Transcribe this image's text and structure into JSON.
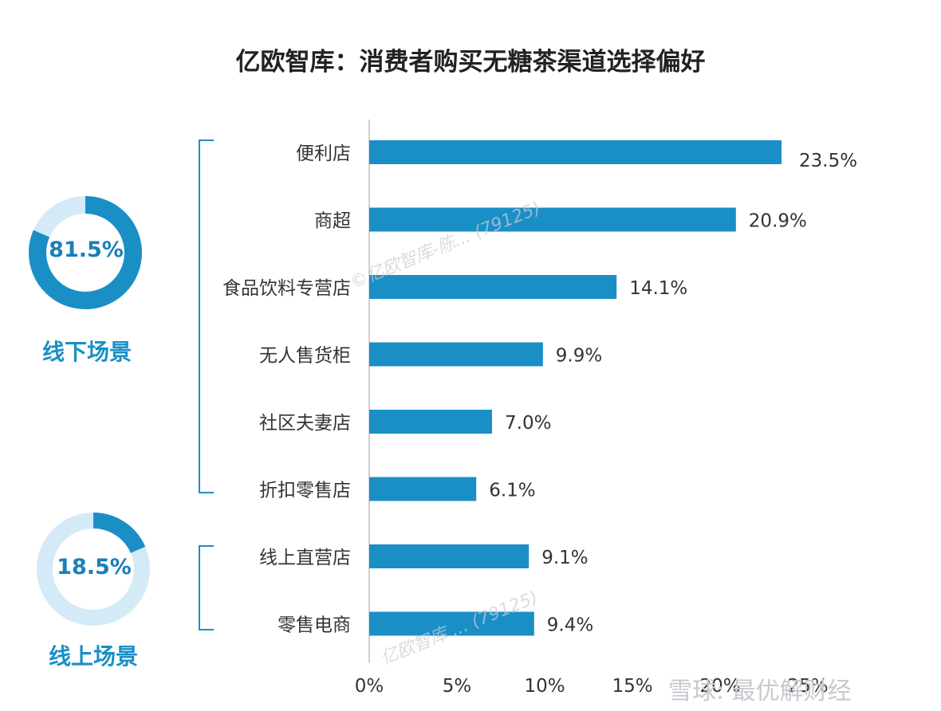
{
  "chart_data": {
    "type": "bar",
    "orientation": "horizontal",
    "title": "亿欧智库：消费者购买无糖茶渠道选择偏好",
    "categories": [
      "便利店",
      "商超",
      "食品饮料专营店",
      "无人售货柜",
      "社区夫妻店",
      "折扣零售店",
      "线上直营店",
      "零售电商"
    ],
    "values": [
      23.5,
      20.9,
      14.1,
      9.9,
      7.0,
      6.1,
      9.1,
      9.4
    ],
    "value_labels": [
      "23.5%",
      "20.9%",
      "14.1%",
      "9.9%",
      "7.0%",
      "6.1%",
      "9.1%",
      "9.4%"
    ],
    "xlim": [
      0,
      25
    ],
    "xticks": [
      "0%",
      "5%",
      "10%",
      "15%",
      "20%",
      "25%"
    ],
    "grid": false,
    "bar_color": "#1a8fc6",
    "groups": [
      {
        "label": "线下场景",
        "share": 81.5,
        "share_label": "81.5%",
        "categories": [
          "便利店",
          "商超",
          "食品饮料专营店",
          "无人售货柜",
          "社区夫妻店",
          "折扣零售店"
        ]
      },
      {
        "label": "线上场景",
        "share": 18.5,
        "share_label": "18.5%",
        "categories": [
          "线上直营店",
          "零售电商"
        ]
      }
    ]
  },
  "colors": {
    "accent": "#1a8fc6",
    "donut_track": "#d4eaf7",
    "label_blue": "#1a7fb8"
  },
  "watermarks": {
    "diagonal": "©亿欧智库-陈... (79125)",
    "lower": "亿欧智库 ... (79125)",
    "footer": "雪球: 最优解财经"
  }
}
